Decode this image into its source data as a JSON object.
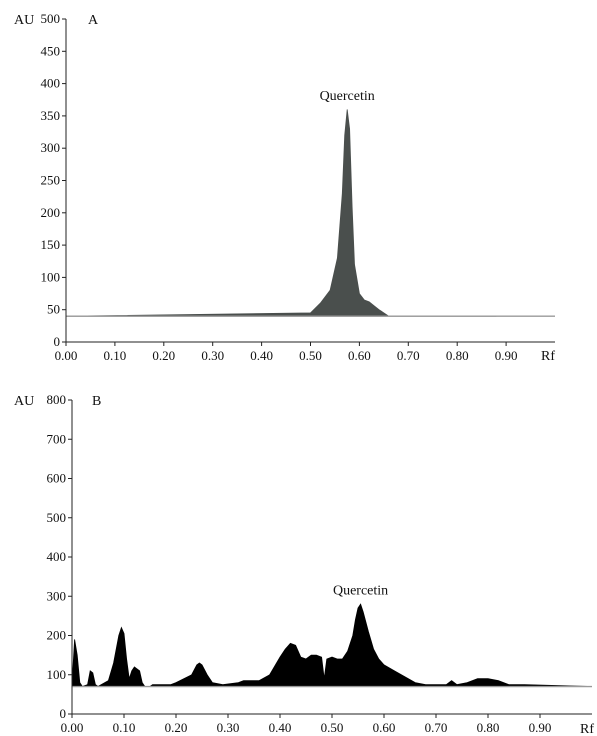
{
  "chart_data": [
    {
      "panel": "A",
      "type": "area",
      "ylabel": "AU",
      "xlabel": "Rf",
      "xlim": [
        0,
        1.0
      ],
      "ylim": [
        0,
        500
      ],
      "x_ticks": [
        0.0,
        0.1,
        0.2,
        0.3,
        0.4,
        0.5,
        0.6,
        0.7,
        0.8,
        0.9
      ],
      "x_tick_labels": [
        "0.00",
        "0.10",
        "0.20",
        "0.30",
        "0.40",
        "0.50",
        "0.60",
        "0.70",
        "0.80",
        "0.90"
      ],
      "y_ticks": [
        0,
        50,
        100,
        150,
        200,
        250,
        300,
        350,
        400,
        450,
        500
      ],
      "y_tick_labels": [
        "0",
        "50",
        "100",
        "150",
        "200",
        "250",
        "300",
        "350",
        "400",
        "450",
        "500"
      ],
      "baseline": 40,
      "fill_color": "#4a4f4d",
      "grid": false,
      "annotations": [
        {
          "text": "Quercetin",
          "x": 0.575,
          "y": 375
        }
      ],
      "series": [
        {
          "x": [
            0.0,
            0.5,
            0.52,
            0.54,
            0.555,
            0.565,
            0.57,
            0.575,
            0.58,
            0.585,
            0.59,
            0.6,
            0.61,
            0.62,
            0.63,
            0.64,
            0.65,
            0.66,
            0.7,
            0.88
          ],
          "y": [
            40,
            45,
            60,
            80,
            130,
            230,
            320,
            360,
            330,
            210,
            120,
            75,
            65,
            62,
            56,
            50,
            45,
            40,
            40,
            40
          ]
        }
      ]
    },
    {
      "panel": "B",
      "type": "area",
      "ylabel": "AU",
      "xlabel": "Rf",
      "xlim": [
        0,
        1.0
      ],
      "ylim": [
        0,
        800
      ],
      "x_ticks": [
        0.0,
        0.1,
        0.2,
        0.3,
        0.4,
        0.5,
        0.6,
        0.7,
        0.8,
        0.9
      ],
      "x_tick_labels": [
        "0.00",
        "0.10",
        "0.20",
        "0.30",
        "0.40",
        "0.50",
        "0.60",
        "0.70",
        "0.80",
        "0.90"
      ],
      "y_ticks": [
        0,
        100,
        200,
        300,
        400,
        500,
        600,
        700,
        800
      ],
      "y_tick_labels": [
        "0",
        "100",
        "200",
        "300",
        "400",
        "500",
        "600",
        "700",
        "800"
      ],
      "baseline": 70,
      "fill_color": "#000000",
      "grid": false,
      "annotations": [
        {
          "text": "Quercetin",
          "x": 0.555,
          "y": 305
        }
      ],
      "series": [
        {
          "x": [
            0.0,
            0.005,
            0.01,
            0.015,
            0.02,
            0.03,
            0.035,
            0.04,
            0.045,
            0.05,
            0.07,
            0.08,
            0.09,
            0.095,
            0.1,
            0.105,
            0.11,
            0.115,
            0.12,
            0.13,
            0.135,
            0.14,
            0.15,
            0.155,
            0.19,
            0.2,
            0.23,
            0.24,
            0.245,
            0.25,
            0.26,
            0.27,
            0.29,
            0.32,
            0.33,
            0.36,
            0.38,
            0.4,
            0.41,
            0.42,
            0.43,
            0.44,
            0.45,
            0.46,
            0.47,
            0.48,
            0.485,
            0.49,
            0.5,
            0.51,
            0.52,
            0.53,
            0.54,
            0.545,
            0.55,
            0.555,
            0.56,
            0.57,
            0.58,
            0.59,
            0.6,
            0.62,
            0.64,
            0.66,
            0.68,
            0.72,
            0.73,
            0.74,
            0.76,
            0.78,
            0.8,
            0.82,
            0.84,
            0.87,
            1.0
          ],
          "y": [
            75,
            190,
            150,
            80,
            70,
            75,
            110,
            105,
            75,
            70,
            85,
            130,
            200,
            220,
            205,
            140,
            90,
            110,
            120,
            110,
            80,
            70,
            70,
            75,
            75,
            80,
            100,
            125,
            130,
            125,
            100,
            80,
            75,
            80,
            85,
            85,
            100,
            145,
            165,
            180,
            175,
            145,
            140,
            150,
            150,
            145,
            90,
            140,
            145,
            140,
            140,
            160,
            200,
            240,
            270,
            280,
            260,
            210,
            165,
            140,
            125,
            110,
            95,
            80,
            75,
            75,
            85,
            75,
            80,
            90,
            90,
            85,
            75,
            75,
            70
          ]
        }
      ]
    }
  ]
}
